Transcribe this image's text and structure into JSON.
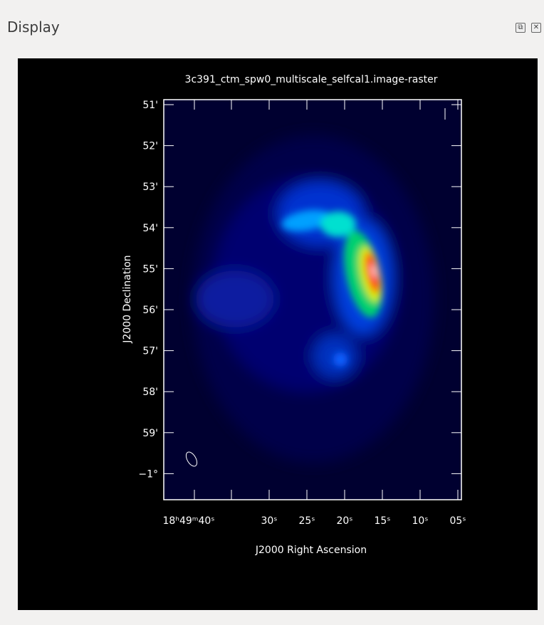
{
  "panel": {
    "title": "Display"
  },
  "image": {
    "title": "3c391_ctm_spw0_multiscale_selfcal1.image-raster",
    "x_axis": {
      "label": "J2000 Right Ascension",
      "ticks": [
        "18ʰ49ᵐ40ˢ",
        "30ˢ",
        "25ˢ",
        "20ˢ",
        "15ˢ",
        "10ˢ",
        "05ˢ"
      ]
    },
    "y_axis": {
      "label": "J2000 Declination",
      "ticks": [
        "51'",
        "52'",
        "53'",
        "54'",
        "55'",
        "56'",
        "57'",
        "58'",
        "59'",
        "−1°"
      ]
    }
  }
}
